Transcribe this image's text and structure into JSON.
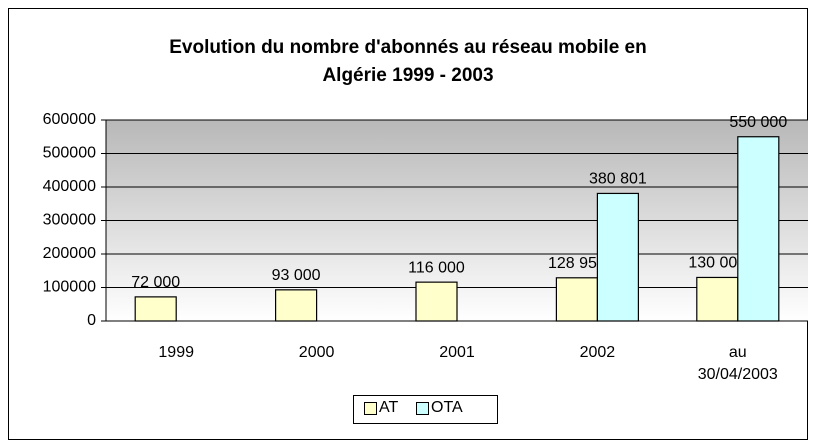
{
  "chart_data": {
    "type": "bar",
    "title": "Evolution du nombre d'abonnés au réseau mobile en",
    "subtitle": "Algérie 1999 - 2003",
    "categories": [
      "1999",
      "2000",
      "2001",
      "2002",
      "au 30/04/2003"
    ],
    "series": [
      {
        "name": "AT",
        "color": "#ffffcc",
        "values": [
          72000,
          93000,
          116000,
          128950,
          130000
        ],
        "value_labels": [
          "72 000",
          "93 000",
          "116 000",
          "128 950",
          "130 000"
        ]
      },
      {
        "name": "OTA",
        "color": "#ccffff",
        "values": [
          null,
          null,
          null,
          380801,
          550000
        ],
        "value_labels": [
          null,
          null,
          null,
          "380 801",
          "550 000"
        ]
      }
    ],
    "ylim": [
      0,
      600000
    ],
    "yticks": [
      0,
      100000,
      200000,
      300000,
      400000,
      500000,
      600000
    ],
    "grid": true,
    "legend": "bottom"
  }
}
